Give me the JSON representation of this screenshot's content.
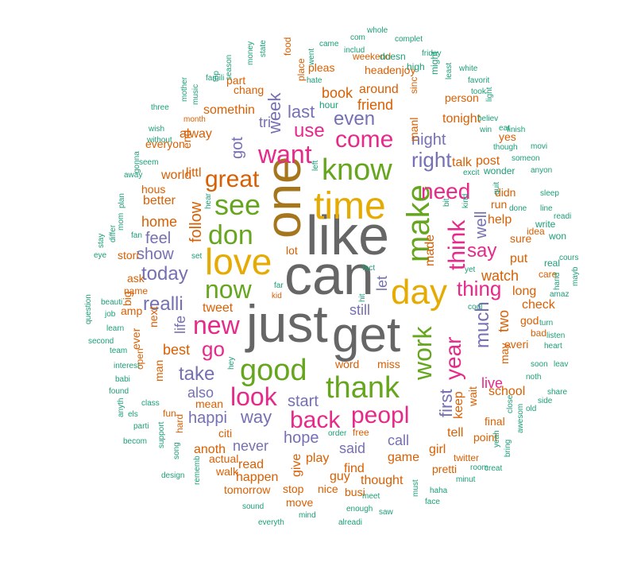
{
  "colors": {
    "teal": "#1b9e77",
    "orange": "#d95f02",
    "purple": "#7570b3",
    "magenta": "#e7298a",
    "green": "#66a61e",
    "gold": "#e6ab02",
    "brown": "#a6761d",
    "gray": "#666666"
  },
  "words": [
    {
      "text": "like",
      "color": "gray"
    },
    {
      "text": "can",
      "color": "gray"
    },
    {
      "text": "get",
      "color": "gray"
    },
    {
      "text": "just",
      "color": "gray"
    },
    {
      "text": "one",
      "color": "brown"
    },
    {
      "text": "time",
      "color": "gold"
    },
    {
      "text": "day",
      "color": "gold"
    },
    {
      "text": "love",
      "color": "gold"
    },
    {
      "text": "make",
      "color": "green"
    },
    {
      "text": "know",
      "color": "green"
    },
    {
      "text": "thank",
      "color": "green"
    },
    {
      "text": "good",
      "color": "green"
    },
    {
      "text": "see",
      "color": "green"
    },
    {
      "text": "don",
      "color": "green"
    },
    {
      "text": "now",
      "color": "green"
    },
    {
      "text": "work",
      "color": "green"
    },
    {
      "text": "want",
      "color": "magenta"
    },
    {
      "text": "new",
      "color": "magenta"
    },
    {
      "text": "look",
      "color": "magenta"
    },
    {
      "text": "back",
      "color": "magenta"
    },
    {
      "text": "peopl",
      "color": "magenta"
    },
    {
      "text": "think",
      "color": "magenta"
    },
    {
      "text": "come",
      "color": "magenta"
    },
    {
      "text": "need",
      "color": "magenta"
    },
    {
      "text": "year",
      "color": "magenta"
    },
    {
      "text": "use",
      "color": "magenta"
    },
    {
      "text": "thing",
      "color": "magenta"
    },
    {
      "text": "great",
      "color": "orange"
    },
    {
      "text": "go",
      "color": "magenta"
    },
    {
      "text": "right",
      "color": "purple"
    },
    {
      "text": "even",
      "color": "purple"
    },
    {
      "text": "realli",
      "color": "purple"
    },
    {
      "text": "today",
      "color": "purple"
    },
    {
      "text": "take",
      "color": "purple"
    },
    {
      "text": "say",
      "color": "magenta"
    },
    {
      "text": "much",
      "color": "purple"
    },
    {
      "text": "first",
      "color": "purple"
    },
    {
      "text": "week",
      "color": "purple"
    },
    {
      "text": "last",
      "color": "purple"
    },
    {
      "text": "follow",
      "color": "orange"
    },
    {
      "text": "well",
      "color": "purple"
    },
    {
      "text": "got",
      "color": "purple"
    },
    {
      "text": "way",
      "color": "purple"
    },
    {
      "text": "hope",
      "color": "purple"
    },
    {
      "text": "night",
      "color": "purple"
    },
    {
      "text": "feel",
      "color": "purple"
    },
    {
      "text": "show",
      "color": "purple"
    },
    {
      "text": "happi",
      "color": "purple"
    },
    {
      "text": "also",
      "color": "purple"
    },
    {
      "text": "start",
      "color": "purple"
    },
    {
      "text": "never",
      "color": "purple"
    },
    {
      "text": "still",
      "color": "purple"
    },
    {
      "text": "said",
      "color": "purple"
    },
    {
      "text": "call",
      "color": "purple"
    },
    {
      "text": "let",
      "color": "purple"
    },
    {
      "text": "tri",
      "color": "purple"
    },
    {
      "text": "life",
      "color": "purple"
    },
    {
      "text": "two",
      "color": "orange"
    },
    {
      "text": "live",
      "color": "magenta"
    },
    {
      "text": "friend",
      "color": "orange"
    },
    {
      "text": "book",
      "color": "orange"
    },
    {
      "text": "around",
      "color": "orange"
    },
    {
      "text": "somethin",
      "color": "orange"
    },
    {
      "text": "alway",
      "color": "orange"
    },
    {
      "text": "littl",
      "color": "orange"
    },
    {
      "text": "home",
      "color": "orange"
    },
    {
      "text": "best",
      "color": "orange"
    },
    {
      "text": "tweet",
      "color": "orange"
    },
    {
      "text": "made",
      "color": "orange"
    },
    {
      "text": "watch",
      "color": "orange"
    },
    {
      "text": "help",
      "color": "orange"
    },
    {
      "text": "put",
      "color": "orange"
    },
    {
      "text": "long",
      "color": "orange"
    },
    {
      "text": "check",
      "color": "orange"
    },
    {
      "text": "school",
      "color": "orange"
    },
    {
      "text": "keep",
      "color": "orange"
    },
    {
      "text": "tell",
      "color": "orange"
    },
    {
      "text": "play",
      "color": "orange"
    },
    {
      "text": "read",
      "color": "orange"
    },
    {
      "text": "happen",
      "color": "orange"
    },
    {
      "text": "anoth",
      "color": "orange"
    },
    {
      "text": "game",
      "color": "orange"
    },
    {
      "text": "find",
      "color": "orange"
    },
    {
      "text": "thought",
      "color": "orange"
    },
    {
      "text": "give",
      "color": "orange"
    },
    {
      "text": "guy",
      "color": "orange"
    },
    {
      "text": "girl",
      "color": "orange"
    },
    {
      "text": "tonight",
      "color": "orange"
    },
    {
      "text": "talk",
      "color": "orange"
    },
    {
      "text": "post",
      "color": "orange"
    },
    {
      "text": "person",
      "color": "orange"
    },
    {
      "text": "world",
      "color": "orange"
    },
    {
      "text": "better",
      "color": "orange"
    },
    {
      "text": "hous",
      "color": "orange"
    },
    {
      "text": "sure",
      "color": "orange"
    },
    {
      "text": "everi",
      "color": "orange"
    },
    {
      "text": "wait",
      "color": "orange"
    },
    {
      "text": "final",
      "color": "orange"
    },
    {
      "text": "may",
      "color": "orange"
    },
    {
      "text": "god",
      "color": "orange"
    },
    {
      "text": "chang",
      "color": "orange"
    },
    {
      "text": "pleas",
      "color": "orange"
    },
    {
      "text": "head",
      "color": "orange"
    },
    {
      "text": "enjoy",
      "color": "orange"
    },
    {
      "text": "part",
      "color": "orange"
    },
    {
      "text": "next",
      "color": "orange"
    },
    {
      "text": "ask",
      "color": "orange"
    },
    {
      "text": "big",
      "color": "orange"
    },
    {
      "text": "man",
      "color": "orange"
    },
    {
      "text": "mean",
      "color": "orange"
    },
    {
      "text": "end",
      "color": "orange"
    },
    {
      "text": "manl",
      "color": "orange"
    },
    {
      "text": "run",
      "color": "orange"
    },
    {
      "text": "didn",
      "color": "orange"
    },
    {
      "text": "yes",
      "color": "orange"
    },
    {
      "text": "word",
      "color": "orange"
    },
    {
      "text": "miss",
      "color": "orange"
    },
    {
      "text": "stori",
      "color": "orange"
    },
    {
      "text": "citi",
      "color": "orange"
    },
    {
      "text": "actual",
      "color": "orange"
    },
    {
      "text": "tomorrow",
      "color": "orange"
    },
    {
      "text": "stop",
      "color": "orange"
    },
    {
      "text": "nice",
      "color": "orange"
    },
    {
      "text": "busi",
      "color": "orange"
    },
    {
      "text": "move",
      "color": "orange"
    },
    {
      "text": "pretti",
      "color": "orange"
    },
    {
      "text": "walk",
      "color": "orange"
    },
    {
      "text": "weekend",
      "color": "orange"
    },
    {
      "text": "everyon",
      "color": "orange"
    },
    {
      "text": "lot",
      "color": "orange"
    },
    {
      "text": "ever",
      "color": "orange"
    },
    {
      "text": "name",
      "color": "orange"
    },
    {
      "text": "amp",
      "color": "orange"
    },
    {
      "text": "open",
      "color": "orange"
    },
    {
      "text": "fun",
      "color": "orange"
    },
    {
      "text": "hard",
      "color": "orange"
    },
    {
      "text": "idea",
      "color": "orange"
    },
    {
      "text": "twitter",
      "color": "orange"
    },
    {
      "text": "point",
      "color": "orange"
    },
    {
      "text": "sinc",
      "color": "orange"
    },
    {
      "text": "bad",
      "color": "orange"
    },
    {
      "text": "care",
      "color": "orange"
    },
    {
      "text": "fact",
      "color": "teal"
    },
    {
      "text": "hit",
      "color": "teal"
    },
    {
      "text": "kid",
      "color": "orange"
    },
    {
      "text": "far",
      "color": "teal"
    },
    {
      "text": "hey",
      "color": "teal"
    },
    {
      "text": "cool",
      "color": "teal"
    },
    {
      "text": "real",
      "color": "teal"
    },
    {
      "text": "yet",
      "color": "teal"
    },
    {
      "text": "set",
      "color": "teal"
    },
    {
      "text": "left",
      "color": "teal"
    },
    {
      "text": "hear",
      "color": "teal"
    },
    {
      "text": "bit",
      "color": "teal"
    },
    {
      "text": "kind",
      "color": "teal"
    },
    {
      "text": "quit",
      "color": "teal"
    },
    {
      "text": "excit",
      "color": "teal"
    },
    {
      "text": "wonder",
      "color": "teal"
    },
    {
      "text": "someon",
      "color": "teal"
    },
    {
      "text": "anyon",
      "color": "teal"
    },
    {
      "text": "done",
      "color": "teal"
    },
    {
      "text": "write",
      "color": "teal"
    },
    {
      "text": "won",
      "color": "teal"
    },
    {
      "text": "cours",
      "color": "teal"
    },
    {
      "text": "mayb",
      "color": "teal"
    },
    {
      "text": "hand",
      "color": "teal"
    },
    {
      "text": "amaz",
      "color": "teal"
    },
    {
      "text": "turn",
      "color": "teal"
    },
    {
      "text": "listen",
      "color": "teal"
    },
    {
      "text": "heart",
      "color": "teal"
    },
    {
      "text": "soon",
      "color": "teal"
    },
    {
      "text": "leav",
      "color": "teal"
    },
    {
      "text": "noth",
      "color": "teal"
    },
    {
      "text": "share",
      "color": "teal"
    },
    {
      "text": "side",
      "color": "teal"
    },
    {
      "text": "old",
      "color": "teal"
    },
    {
      "text": "close",
      "color": "teal"
    },
    {
      "text": "awesom",
      "color": "teal"
    },
    {
      "text": "yeah",
      "color": "teal"
    },
    {
      "text": "bring",
      "color": "teal"
    },
    {
      "text": "creat",
      "color": "teal"
    },
    {
      "text": "minut",
      "color": "teal"
    },
    {
      "text": "room",
      "color": "teal"
    },
    {
      "text": "haha",
      "color": "teal"
    },
    {
      "text": "face",
      "color": "teal"
    },
    {
      "text": "must",
      "color": "teal"
    },
    {
      "text": "saw",
      "color": "teal"
    },
    {
      "text": "meet",
      "color": "teal"
    },
    {
      "text": "enough",
      "color": "teal"
    },
    {
      "text": "alreadi",
      "color": "teal"
    },
    {
      "text": "mind",
      "color": "teal"
    },
    {
      "text": "everyth",
      "color": "teal"
    },
    {
      "text": "sound",
      "color": "teal"
    },
    {
      "text": "rememb",
      "color": "teal"
    },
    {
      "text": "design",
      "color": "teal"
    },
    {
      "text": "song",
      "color": "teal"
    },
    {
      "text": "support",
      "color": "teal"
    },
    {
      "text": "becom",
      "color": "teal"
    },
    {
      "text": "parti",
      "color": "teal"
    },
    {
      "text": "els",
      "color": "teal"
    },
    {
      "text": "class",
      "color": "teal"
    },
    {
      "text": "anyth",
      "color": "teal"
    },
    {
      "text": "found",
      "color": "teal"
    },
    {
      "text": "babi",
      "color": "teal"
    },
    {
      "text": "interest",
      "color": "teal"
    },
    {
      "text": "team",
      "color": "teal"
    },
    {
      "text": "second",
      "color": "teal"
    },
    {
      "text": "learn",
      "color": "teal"
    },
    {
      "text": "job",
      "color": "teal"
    },
    {
      "text": "question",
      "color": "teal"
    },
    {
      "text": "beauti",
      "color": "teal"
    },
    {
      "text": "eye",
      "color": "teal"
    },
    {
      "text": "stay",
      "color": "teal"
    },
    {
      "text": "differ",
      "color": "teal"
    },
    {
      "text": "fan",
      "color": "teal"
    },
    {
      "text": "mom",
      "color": "teal"
    },
    {
      "text": "plan",
      "color": "teal"
    },
    {
      "text": "gonna",
      "color": "teal"
    },
    {
      "text": "away",
      "color": "teal"
    },
    {
      "text": "seem",
      "color": "teal"
    },
    {
      "text": "without",
      "color": "teal"
    },
    {
      "text": "wish",
      "color": "teal"
    },
    {
      "text": "three",
      "color": "teal"
    },
    {
      "text": "month",
      "color": "orange"
    },
    {
      "text": "mother",
      "color": "teal"
    },
    {
      "text": "music",
      "color": "teal"
    },
    {
      "text": "famili",
      "color": "teal"
    },
    {
      "text": "top",
      "color": "teal"
    },
    {
      "text": "season",
      "color": "teal"
    },
    {
      "text": "money",
      "color": "teal"
    },
    {
      "text": "state",
      "color": "teal"
    },
    {
      "text": "food",
      "color": "orange"
    },
    {
      "text": "place",
      "color": "orange"
    },
    {
      "text": "went",
      "color": "teal"
    },
    {
      "text": "came",
      "color": "teal"
    },
    {
      "text": "com",
      "color": "teal"
    },
    {
      "text": "includ",
      "color": "teal"
    },
    {
      "text": "whole",
      "color": "teal"
    },
    {
      "text": "complet",
      "color": "teal"
    },
    {
      "text": "friday",
      "color": "teal"
    },
    {
      "text": "doesn",
      "color": "teal"
    },
    {
      "text": "high",
      "color": "teal"
    },
    {
      "text": "might",
      "color": "teal"
    },
    {
      "text": "least",
      "color": "teal"
    },
    {
      "text": "white",
      "color": "teal"
    },
    {
      "text": "favorit",
      "color": "teal"
    },
    {
      "text": "took",
      "color": "teal"
    },
    {
      "text": "light",
      "color": "teal"
    },
    {
      "text": "hate",
      "color": "teal"
    },
    {
      "text": "hour",
      "color": "teal"
    },
    {
      "text": "believ",
      "color": "teal"
    },
    {
      "text": "win",
      "color": "teal"
    },
    {
      "text": "eat",
      "color": "teal"
    },
    {
      "text": "finish",
      "color": "teal"
    },
    {
      "text": "though",
      "color": "teal"
    },
    {
      "text": "movi",
      "color": "teal"
    },
    {
      "text": "sleep",
      "color": "teal"
    },
    {
      "text": "line",
      "color": "teal"
    },
    {
      "text": "readi",
      "color": "teal"
    },
    {
      "text": "order",
      "color": "teal"
    },
    {
      "text": "free",
      "color": "orange"
    }
  ]
}
